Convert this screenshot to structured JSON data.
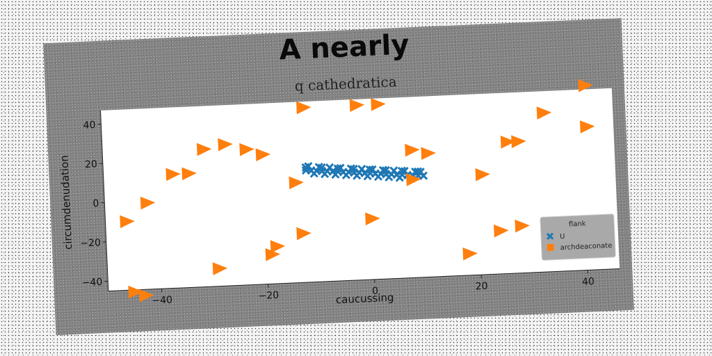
{
  "chart_data": {
    "type": "scatter",
    "title": "A nearly",
    "subtitle": "q cathedratica",
    "xlabel": "caucussing",
    "ylabel": "circumdenudation",
    "xlim": [
      -50,
      46
    ],
    "ylim": [
      -45,
      47
    ],
    "xticks": [
      -40,
      -20,
      0,
      20,
      40
    ],
    "yticks": [
      -40,
      -20,
      0,
      20,
      40
    ],
    "grid": false,
    "legend": {
      "title": "flank",
      "placement": "bottom-right",
      "entries": [
        "U",
        "archdeaconate"
      ]
    },
    "series": [
      {
        "name": "U",
        "marker": "x",
        "color": "#1f77b4",
        "x": [
          -12,
          -11,
          -10,
          -9,
          -8,
          -7,
          -6,
          -5,
          -4,
          -3,
          -2,
          -1,
          0,
          1,
          2,
          3,
          4,
          5,
          6,
          7,
          8,
          9,
          10,
          -11.5,
          -9.5,
          -7.5,
          -5.5,
          -3.5,
          -1.5,
          0.5,
          2.5,
          4.5,
          6.5,
          8.5,
          9.5,
          -10.5,
          -8.5,
          -6.5,
          -4.5,
          -2.5,
          -0.5,
          1.5,
          3.5,
          5.5,
          7.5,
          -12,
          -9,
          -6,
          -3,
          0,
          3,
          6,
          9
        ],
        "y": [
          12,
          11.8,
          11.5,
          11.3,
          11.1,
          10.8,
          10.6,
          10.3,
          10.1,
          9.8,
          9.6,
          9.3,
          9.1,
          8.8,
          8.6,
          8.3,
          8.1,
          7.8,
          7.6,
          7.3,
          7.1,
          6.8,
          6.6,
          14,
          13.4,
          12.9,
          12.4,
          11.9,
          11.4,
          10.9,
          10.4,
          9.9,
          9.4,
          8.9,
          8.6,
          10.2,
          9.7,
          9.2,
          8.7,
          8.2,
          7.7,
          7.2,
          6.7,
          6.2,
          5.7,
          13.5,
          13,
          12.2,
          11.6,
          11,
          10.2,
          9.6,
          8.9
        ]
      },
      {
        "name": "archdeaconate",
        "marker": "triangle-right",
        "color": "#ff7f0e",
        "x": [
          -46,
          -42,
          -37,
          -34,
          -31,
          -27,
          -23,
          -20,
          -14,
          -12,
          -2,
          2,
          8,
          11,
          21,
          26,
          28,
          33,
          41,
          41,
          28,
          24,
          18,
          8,
          0,
          -13,
          -18,
          -19,
          -29,
          -43,
          -45
        ],
        "y": [
          -10,
          -1,
          13,
          13,
          25,
          27,
          24,
          21,
          6,
          44,
          44,
          44,
          20,
          18,
          6,
          22,
          22,
          36,
          49,
          28,
          -21,
          -23,
          -34,
          5,
          -14,
          -20,
          -26,
          -30,
          -36,
          -48,
          -46
        ]
      }
    ]
  }
}
